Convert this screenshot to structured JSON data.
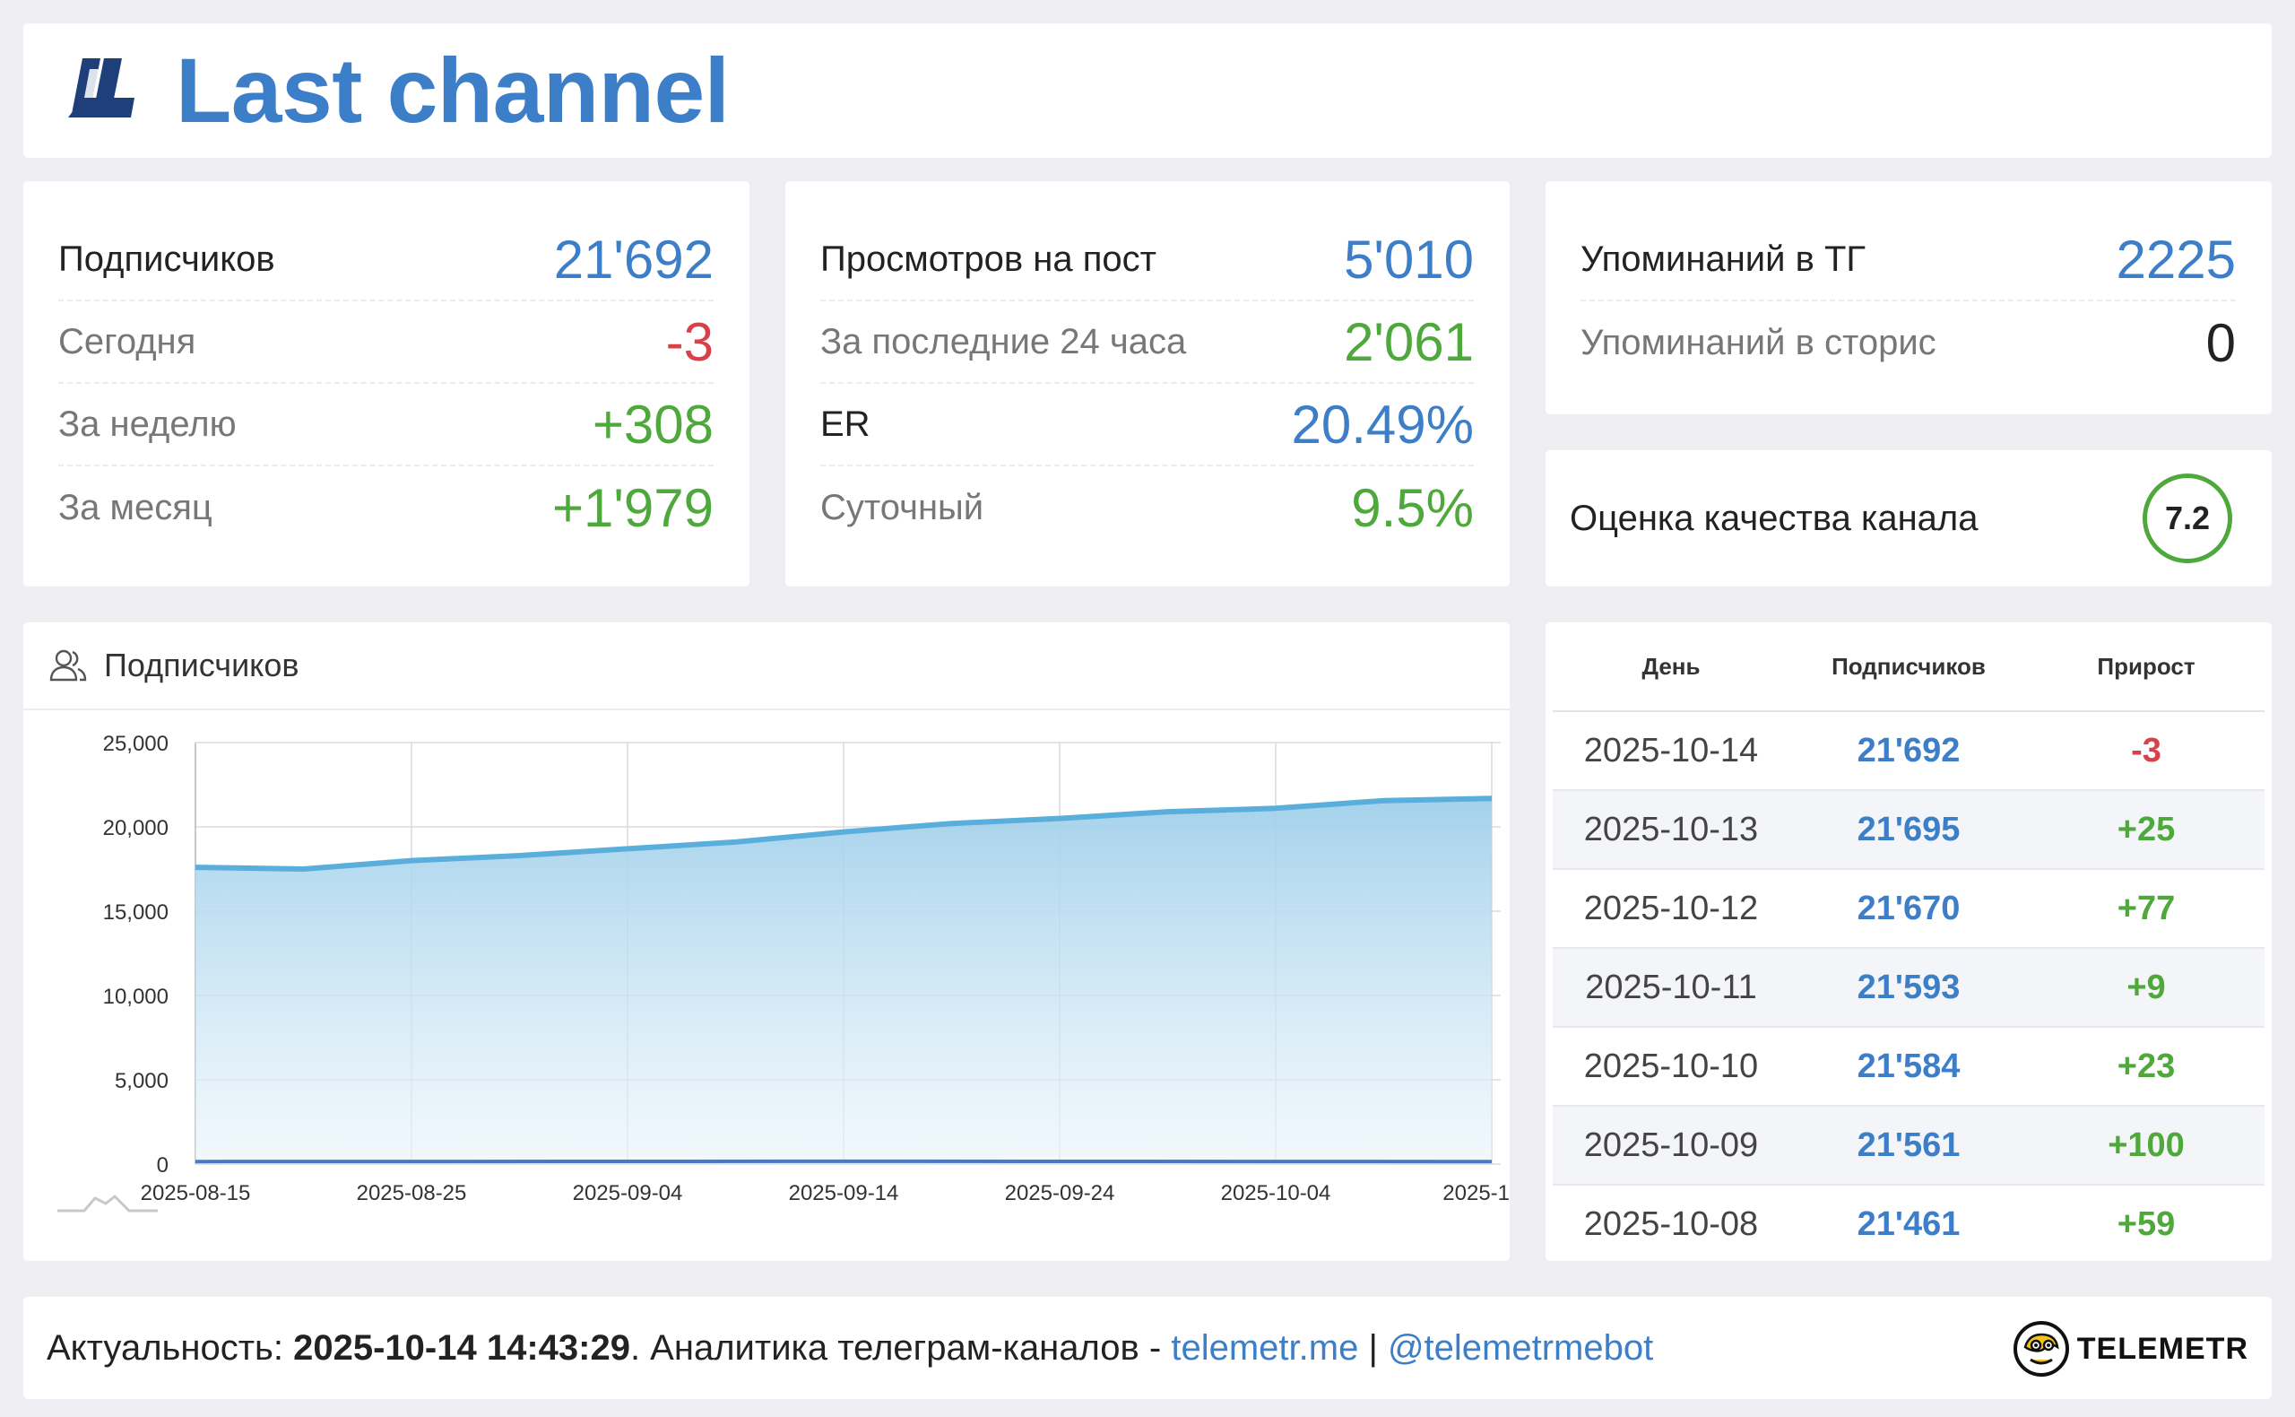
{
  "header": {
    "title": "Last channel"
  },
  "subscribers_card": {
    "rows": [
      {
        "label": "Подписчиков",
        "value": "21'692",
        "tone": "blue",
        "main": true
      },
      {
        "label": "Сегодня",
        "value": "-3",
        "tone": "red"
      },
      {
        "label": "За неделю",
        "value": "+308",
        "tone": "green"
      },
      {
        "label": "За месяц",
        "value": "+1'979",
        "tone": "green"
      }
    ]
  },
  "views_card": {
    "rows": [
      {
        "label": "Просмотров на пост",
        "value": "5'010",
        "tone": "blue",
        "main": true
      },
      {
        "label": "За последние 24 часа",
        "value": "2'061",
        "tone": "green"
      },
      {
        "label": "ER",
        "value": "20.49%",
        "tone": "blue",
        "main": true
      },
      {
        "label": "Суточный",
        "value": "9.5%",
        "tone": "green"
      }
    ]
  },
  "mentions_card": {
    "rows": [
      {
        "label": "Упоминаний в ТГ",
        "value": "2225",
        "tone": "blue",
        "main": true
      },
      {
        "label": "Упоминаний в сторис",
        "value": "0",
        "tone": "dark"
      }
    ]
  },
  "quality_card": {
    "label": "Оценка качества канала",
    "score": "7.2"
  },
  "chart_card": {
    "title": "Подписчиков",
    "icon": "users-icon"
  },
  "chart_data": {
    "type": "area",
    "xlabel": "",
    "ylabel": "",
    "ylim": [
      0,
      25000
    ],
    "y_ticks": [
      "0",
      "5,000",
      "10,000",
      "15,000",
      "20,000",
      "25,000"
    ],
    "x_tick_labels": [
      "2025-08-15",
      "2025-08-25",
      "2025-09-04",
      "2025-09-14",
      "2025-09-24",
      "2025-10-04",
      "2025-10-1"
    ],
    "grid": true,
    "series": [
      {
        "x": [
          "2025-08-15",
          "2025-08-20",
          "2025-08-25",
          "2025-08-30",
          "2025-09-04",
          "2025-09-09",
          "2025-09-14",
          "2025-09-19",
          "2025-09-24",
          "2025-09-29",
          "2025-10-04",
          "2025-10-09",
          "2025-10-14"
        ],
        "values": [
          17600,
          17500,
          18000,
          18300,
          18700,
          19100,
          19700,
          20200,
          20500,
          20900,
          21100,
          21561,
          21692
        ],
        "color": "#5aaedb"
      },
      {
        "x": [
          "2025-08-15",
          "2025-09-14",
          "2025-10-14"
        ],
        "values": [
          40,
          60,
          40
        ],
        "color": "#4a78c8"
      }
    ]
  },
  "table": {
    "headers": [
      "День",
      "Подписчиков",
      "Прирост"
    ],
    "rows": [
      {
        "day": "2025-10-14",
        "subs": "21'692",
        "delta": "-3",
        "tone": "red"
      },
      {
        "day": "2025-10-13",
        "subs": "21'695",
        "delta": "+25",
        "tone": "green"
      },
      {
        "day": "2025-10-12",
        "subs": "21'670",
        "delta": "+77",
        "tone": "green"
      },
      {
        "day": "2025-10-11",
        "subs": "21'593",
        "delta": "+9",
        "tone": "green"
      },
      {
        "day": "2025-10-10",
        "subs": "21'584",
        "delta": "+23",
        "tone": "green"
      },
      {
        "day": "2025-10-09",
        "subs": "21'561",
        "delta": "+100",
        "tone": "green"
      },
      {
        "day": "2025-10-08",
        "subs": "21'461",
        "delta": "+59",
        "tone": "green"
      }
    ]
  },
  "footer": {
    "prefix": "Актуальность: ",
    "date": "2025-10-14 14:43:29",
    "middle": ". Аналитика телеграм-каналов - ",
    "link1": "telemetr.me",
    "sep": " | ",
    "link2": "@telemetrmebot",
    "brand": "TELEMETR"
  },
  "colors": {
    "accent": "#3d7ec8",
    "positive": "#4ea83b",
    "negative": "#d9414a"
  }
}
